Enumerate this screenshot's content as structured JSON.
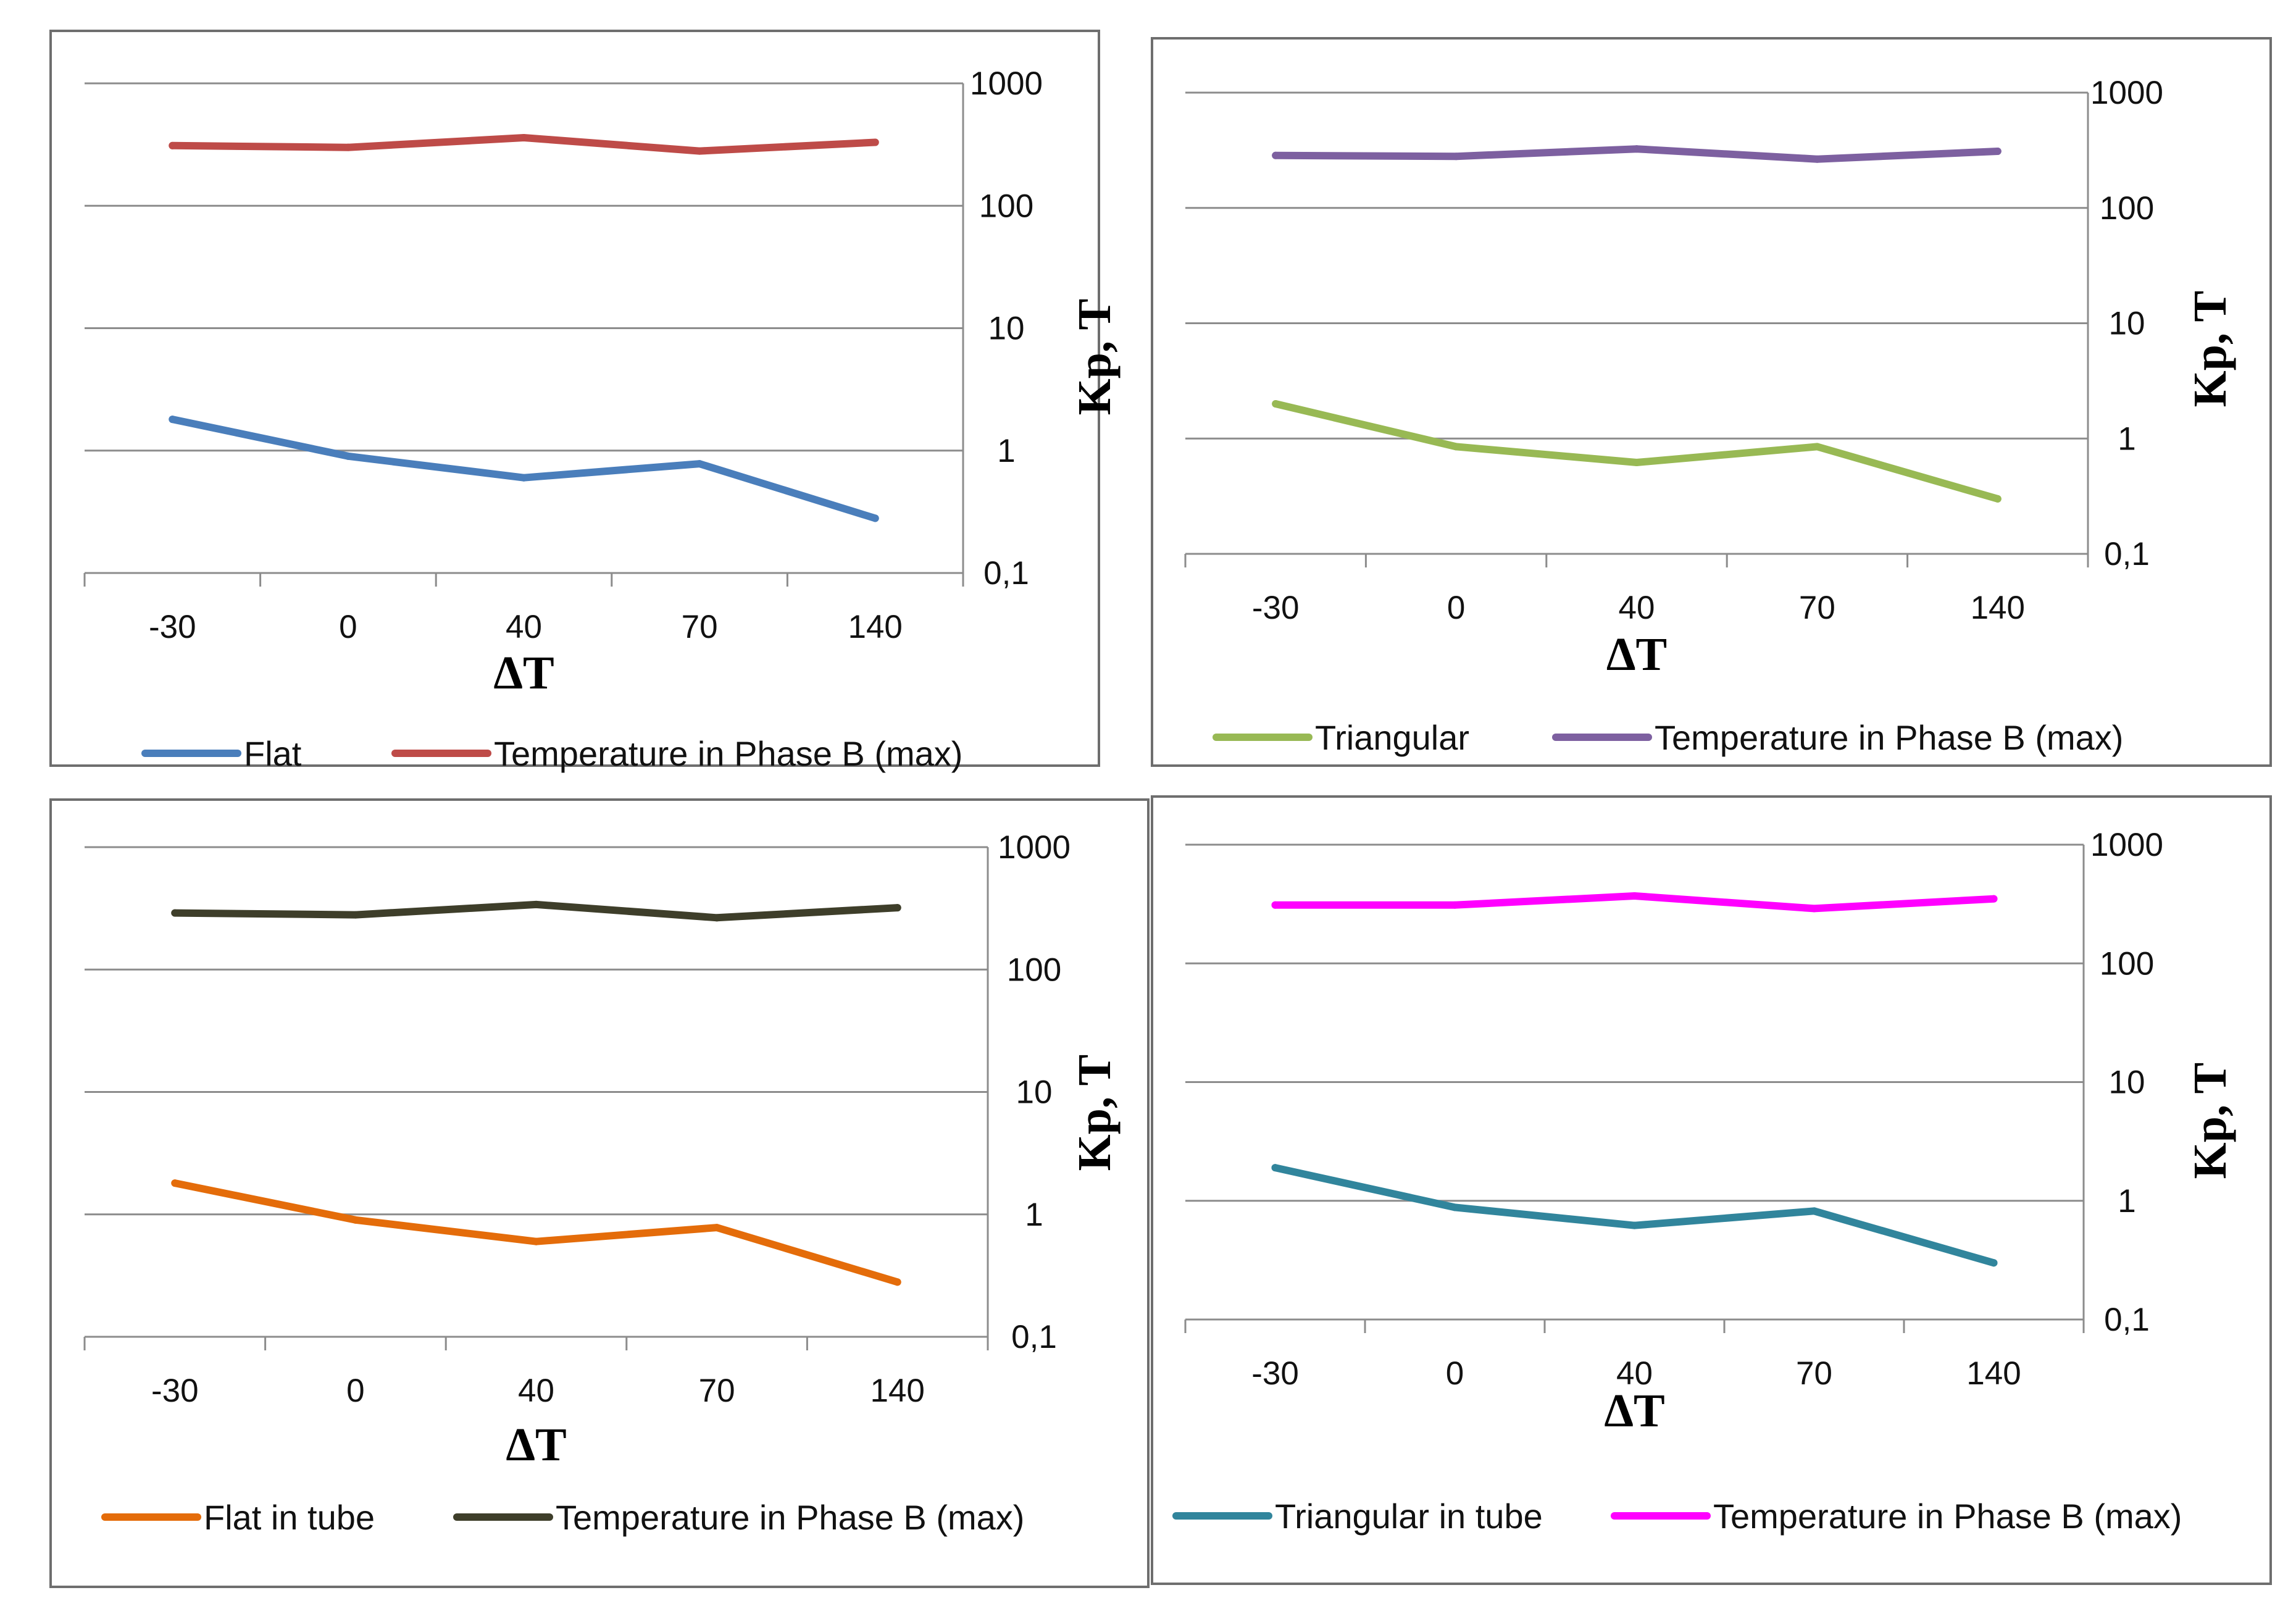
{
  "chart_data": [
    {
      "type": "line",
      "categories": [
        "-30",
        "0",
        "40",
        "70",
        "140"
      ],
      "xlabel": "ΔT",
      "ylabel": "Kp, T",
      "yscale": "log",
      "ylim": [
        0.1,
        1000
      ],
      "yticks": [
        "0,1",
        "1",
        "10",
        "100",
        "1000"
      ],
      "grid": true,
      "legend_position": "bottom",
      "series": [
        {
          "name": "Flat",
          "color": "#4a7ebb",
          "values": [
            1.8,
            0.9,
            0.6,
            0.78,
            0.28
          ]
        },
        {
          "name": "Temperature in Phase B (max)",
          "color": "#be4b48",
          "values": [
            310,
            300,
            360,
            280,
            330
          ]
        }
      ]
    },
    {
      "type": "line",
      "categories": [
        "-30",
        "0",
        "40",
        "70",
        "140"
      ],
      "xlabel": "ΔT",
      "ylabel": "Kp, T",
      "yscale": "log",
      "ylim": [
        0.1,
        1000
      ],
      "yticks": [
        "0,1",
        "1",
        "10",
        "100",
        "1000"
      ],
      "grid": true,
      "legend_position": "bottom",
      "series": [
        {
          "name": "Triangular",
          "color": "#98b954",
          "values": [
            2.0,
            0.85,
            0.62,
            0.85,
            0.3
          ]
        },
        {
          "name": "Temperature in Phase B (max)",
          "color": "#7d60a0",
          "values": [
            285,
            280,
            325,
            265,
            310
          ]
        }
      ]
    },
    {
      "type": "line",
      "categories": [
        "-30",
        "0",
        "40",
        "70",
        "140"
      ],
      "xlabel": "ΔT",
      "ylabel": "Kp, T",
      "yscale": "log",
      "ylim": [
        0.1,
        1000
      ],
      "yticks": [
        "0,1",
        "1",
        "10",
        "100",
        "1000"
      ],
      "grid": true,
      "legend_position": "bottom",
      "series": [
        {
          "name": "Flat in tube",
          "color": "#e46c0a",
          "values": [
            1.8,
            0.9,
            0.6,
            0.78,
            0.28
          ]
        },
        {
          "name": "Temperature in Phase B (max)",
          "color": "#3e3e2a",
          "values": [
            290,
            280,
            340,
            265,
            320
          ]
        }
      ]
    },
    {
      "type": "line",
      "categories": [
        "-30",
        "0",
        "40",
        "70",
        "140"
      ],
      "xlabel": "ΔT",
      "ylabel": "Kp, T",
      "yscale": "log",
      "ylim": [
        0.1,
        1000
      ],
      "yticks": [
        "0,1",
        "1",
        "10",
        "100",
        "1000"
      ],
      "grid": true,
      "legend_position": "bottom",
      "series": [
        {
          "name": "Triangular in tube",
          "color": "#31859c",
          "values": [
            1.9,
            0.88,
            0.62,
            0.82,
            0.3
          ]
        },
        {
          "name": "Temperature in Phase B (max)",
          "color": "#ff00ff",
          "values": [
            310,
            310,
            370,
            290,
            350
          ]
        }
      ]
    }
  ]
}
